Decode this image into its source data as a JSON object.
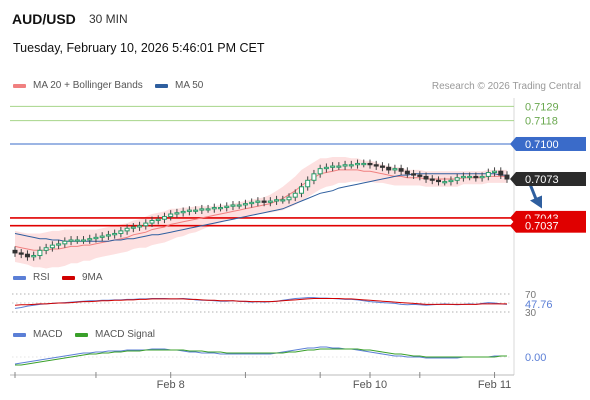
{
  "header": {
    "symbol": "AUD/USD",
    "timeframe": "30 MIN",
    "datetime": "Tuesday, February 10, 2026 5:46:01 PM CET",
    "credit": "Research © 2026 Trading Central"
  },
  "legend": {
    "ma20_label": "MA 20 + Bollinger Bands",
    "ma50_label": "MA 50",
    "rsi_label": "RSI",
    "rsi_ma_label": "9MA",
    "macd_label": "MACD",
    "macd_signal_label": "MACD Signal"
  },
  "colors": {
    "ma20": "#f08080",
    "ma50": "#2f5f9f",
    "bollinger_fill": "#fde0e0",
    "resistance": "#3a6bc9",
    "support": "#e00000",
    "target_green": "#6aa84f",
    "rsi": "#5b7fd6",
    "rsi_ma": "#d00000",
    "macd": "#5b7fd6",
    "macd_signal": "#3aa02a",
    "arrow": "#2f5f9f"
  },
  "chart_data": {
    "type": "candlestick",
    "symbol": "AUD/USD",
    "interval": "30 MIN",
    "y_range": [
      0.7009,
      0.7137
    ],
    "x_labels": [
      "Feb 8",
      "Feb 10",
      "Feb 11"
    ],
    "x_label_index": [
      25,
      57,
      77
    ],
    "bars": 80,
    "closes": [
      0.7016,
      0.7015,
      0.7013,
      0.7014,
      0.7018,
      0.702,
      0.7022,
      0.7023,
      0.7025,
      0.7026,
      0.7026,
      0.7026,
      0.7027,
      0.7028,
      0.7029,
      0.703,
      0.7031,
      0.7033,
      0.7035,
      0.7036,
      0.7037,
      0.7039,
      0.7041,
      0.7042,
      0.7044,
      0.7046,
      0.7047,
      0.7048,
      0.7049,
      0.7049,
      0.705,
      0.705,
      0.7051,
      0.7051,
      0.7052,
      0.7053,
      0.7053,
      0.7054,
      0.7055,
      0.7056,
      0.7055,
      0.7056,
      0.7057,
      0.7057,
      0.7059,
      0.7062,
      0.7067,
      0.7072,
      0.7077,
      0.7081,
      0.7082,
      0.7083,
      0.7083,
      0.7084,
      0.7084,
      0.7085,
      0.7085,
      0.7084,
      0.7083,
      0.7082,
      0.708,
      0.7081,
      0.7079,
      0.7077,
      0.7076,
      0.7075,
      0.7073,
      0.7072,
      0.7071,
      0.7071,
      0.7072,
      0.7074,
      0.7075,
      0.7075,
      0.7074,
      0.7075,
      0.7078,
      0.7079,
      0.7076,
      0.7073
    ],
    "ma20": [
      0.7021,
      0.702,
      0.7019,
      0.7018,
      0.7018,
      0.7018,
      0.7019,
      0.7019,
      0.702,
      0.7021,
      0.7021,
      0.7022,
      0.7022,
      0.7023,
      0.7024,
      0.7025,
      0.7026,
      0.7027,
      0.7028,
      0.703,
      0.7031,
      0.7032,
      0.7034,
      0.7035,
      0.7036,
      0.7038,
      0.7039,
      0.704,
      0.7041,
      0.7042,
      0.7043,
      0.7044,
      0.7045,
      0.7046,
      0.7047,
      0.7048,
      0.7049,
      0.705,
      0.7051,
      0.7052,
      0.7053,
      0.7054,
      0.7056,
      0.7058,
      0.7061,
      0.7064,
      0.7068,
      0.7071,
      0.7074,
      0.7077,
      0.7078,
      0.7079,
      0.708,
      0.708,
      0.708,
      0.708,
      0.7079,
      0.7079,
      0.7078,
      0.7077,
      0.7076,
      0.7075,
      0.7075,
      0.7074,
      0.7074,
      0.7074,
      0.7073,
      0.7073,
      0.7073,
      0.7073,
      0.7073,
      0.7073,
      0.7074,
      0.7074,
      0.7074,
      0.7074,
      0.7075,
      0.7075,
      0.7075,
      0.7075
    ],
    "ma50": [
      0.7031,
      0.703,
      0.7029,
      0.7028,
      0.7027,
      0.7027,
      0.7026,
      0.7026,
      0.7025,
      0.7025,
      0.7025,
      0.7025,
      0.7025,
      0.7025,
      0.7025,
      0.7025,
      0.7026,
      0.7026,
      0.7027,
      0.7027,
      0.7028,
      0.7029,
      0.703,
      0.703,
      0.7031,
      0.7032,
      0.7033,
      0.7034,
      0.7035,
      0.7036,
      0.7037,
      0.7038,
      0.7039,
      0.704,
      0.7041,
      0.7042,
      0.7043,
      0.7044,
      0.7045,
      0.7046,
      0.7047,
      0.7048,
      0.7049,
      0.705,
      0.7052,
      0.7054,
      0.7056,
      0.7058,
      0.706,
      0.7062,
      0.7063,
      0.7064,
      0.7066,
      0.7067,
      0.7068,
      0.7069,
      0.707,
      0.7071,
      0.7072,
      0.7073,
      0.7074,
      0.7075,
      0.7076,
      0.7076,
      0.7077,
      0.7077,
      0.7077,
      0.7077,
      0.7077,
      0.7077,
      0.7077,
      0.7077,
      0.7077,
      0.7077,
      0.7077,
      0.7077,
      0.7077,
      0.7077,
      0.7076,
      0.7076
    ],
    "bollinger_half_width": [
      0.0012,
      0.0012,
      0.0012,
      0.0013,
      0.0013,
      0.0014,
      0.0014,
      0.0014,
      0.0014,
      0.0013,
      0.0013,
      0.0012,
      0.0012,
      0.0011,
      0.0011,
      0.0011,
      0.0011,
      0.0011,
      0.0011,
      0.0011,
      0.0011,
      0.0012,
      0.0012,
      0.0012,
      0.0012,
      0.0012,
      0.0011,
      0.0011,
      0.001,
      0.001,
      0.0009,
      0.0008,
      0.0007,
      0.0007,
      0.0006,
      0.0006,
      0.0006,
      0.0006,
      0.0006,
      0.0006,
      0.0006,
      0.0007,
      0.0008,
      0.0009,
      0.001,
      0.0011,
      0.0012,
      0.0012,
      0.0012,
      0.0012,
      0.0011,
      0.0011,
      0.001,
      0.001,
      0.0009,
      0.0009,
      0.0008,
      0.0008,
      0.0008,
      0.0007,
      0.0007,
      0.0007,
      0.0007,
      0.0006,
      0.0006,
      0.0006,
      0.0006,
      0.0006,
      0.0006,
      0.0006,
      0.0006,
      0.0006,
      0.0005,
      0.0005,
      0.0005,
      0.0005,
      0.0005,
      0.0005,
      0.0005,
      0.0005
    ],
    "levels": [
      {
        "value": 0.7129,
        "label": "0.7129",
        "role": "target",
        "style": "text-green"
      },
      {
        "value": 0.7118,
        "label": "0.7118",
        "role": "target",
        "style": "text-green"
      },
      {
        "value": 0.71,
        "label": "0.7100",
        "role": "pivot",
        "style": "box-blue"
      },
      {
        "value": 0.7073,
        "label": "0.7073",
        "role": "last",
        "style": "box-dark"
      },
      {
        "value": 0.7043,
        "label": "0.7043",
        "role": "support",
        "style": "box-red"
      },
      {
        "value": 0.7037,
        "label": "0.7037",
        "role": "support",
        "style": "box-red"
      }
    ],
    "projection": {
      "from": 0.7073,
      "to": 0.7051
    },
    "rsi": {
      "ylim": [
        30,
        70
      ],
      "levels": [
        70,
        30
      ],
      "last_value": "47.76",
      "values": [
        38,
        40,
        43,
        45,
        47,
        48,
        49,
        50,
        51,
        52,
        53,
        54,
        55,
        55,
        56,
        56,
        57,
        57,
        58,
        58,
        59,
        59,
        60,
        60,
        60,
        59,
        59,
        60,
        59,
        57,
        56,
        56,
        55,
        54,
        54,
        55,
        54,
        53,
        52,
        53,
        52,
        53,
        54,
        56,
        58,
        60,
        61,
        62,
        62,
        61,
        61,
        60,
        59,
        58,
        58,
        57,
        55,
        53,
        52,
        51,
        50,
        49,
        47,
        46,
        47,
        46,
        45,
        46,
        47,
        48,
        47,
        46,
        47,
        48,
        47,
        49,
        51,
        50,
        48,
        47
      ],
      "ma9": [
        45,
        46,
        46,
        47,
        48,
        48,
        49,
        50,
        50,
        51,
        52,
        53,
        53,
        54,
        55,
        55,
        56,
        56,
        57,
        57,
        58,
        58,
        59,
        59,
        59,
        59,
        59,
        59,
        58,
        58,
        57,
        56,
        56,
        55,
        55,
        55,
        54,
        54,
        53,
        53,
        53,
        53,
        54,
        55,
        56,
        57,
        58,
        59,
        60,
        60,
        60,
        60,
        60,
        59,
        59,
        58,
        57,
        56,
        55,
        54,
        53,
        52,
        51,
        50,
        49,
        48,
        47,
        47,
        47,
        47,
        47,
        47,
        47,
        47,
        47,
        48,
        48,
        48,
        48,
        48
      ]
    },
    "macd": {
      "zero_label": "0.00",
      "values": [
        -0.0007,
        -0.0006,
        -0.0005,
        -0.0004,
        -0.0003,
        -0.0002,
        -0.0001,
        0.0,
        0.0001,
        0.0002,
        0.0003,
        0.0004,
        0.0004,
        0.0005,
        0.0005,
        0.0006,
        0.0006,
        0.0006,
        0.0007,
        0.0007,
        0.0007,
        0.0007,
        0.0008,
        0.0008,
        0.0008,
        0.0007,
        0.0007,
        0.0006,
        0.0005,
        0.0005,
        0.0004,
        0.0004,
        0.0004,
        0.0003,
        0.0003,
        0.0003,
        0.0003,
        0.0003,
        0.0003,
        0.0003,
        0.0003,
        0.0003,
        0.0004,
        0.0005,
        0.0006,
        0.0007,
        0.0008,
        0.0009,
        0.0009,
        0.001,
        0.001,
        0.0009,
        0.0009,
        0.0008,
        0.0008,
        0.0007,
        0.0006,
        0.0005,
        0.0004,
        0.0003,
        0.0002,
        0.0001,
        0.0001,
        0.0,
        0.0,
        0.0,
        -0.0001,
        -0.0001,
        -0.0001,
        -0.0001,
        -0.0001,
        -0.0001,
        0.0,
        0.0,
        0.0,
        0.0,
        0.0,
        0.0001,
        0.0001,
        0.0001
      ],
      "signal": [
        -0.0008,
        -0.0008,
        -0.0007,
        -0.0006,
        -0.0005,
        -0.0004,
        -0.0003,
        -0.0002,
        -0.0001,
        0.0,
        0.0001,
        0.0002,
        0.0003,
        0.0003,
        0.0004,
        0.0004,
        0.0005,
        0.0005,
        0.0006,
        0.0006,
        0.0006,
        0.0007,
        0.0007,
        0.0007,
        0.0007,
        0.0007,
        0.0007,
        0.0007,
        0.0006,
        0.0006,
        0.0006,
        0.0005,
        0.0005,
        0.0005,
        0.0004,
        0.0004,
        0.0004,
        0.0004,
        0.0004,
        0.0004,
        0.0004,
        0.0004,
        0.0004,
        0.0004,
        0.0005,
        0.0005,
        0.0006,
        0.0007,
        0.0007,
        0.0008,
        0.0008,
        0.0008,
        0.0008,
        0.0008,
        0.0008,
        0.0008,
        0.0007,
        0.0007,
        0.0006,
        0.0005,
        0.0004,
        0.0003,
        0.0003,
        0.0002,
        0.0001,
        0.0001,
        0.0,
        0.0,
        0.0,
        0.0,
        0.0,
        0.0,
        0.0,
        0.0,
        0.0,
        0.0,
        0.0,
        0.0,
        0.0001,
        0.0001
      ]
    }
  }
}
